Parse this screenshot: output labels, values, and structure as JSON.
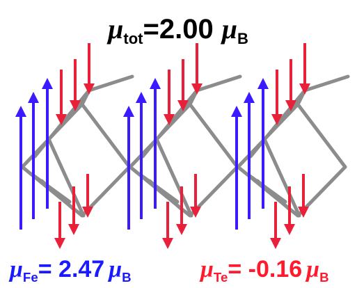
{
  "title": {
    "symbol": "μ",
    "subscript": "tot",
    "text": "=2.00",
    "unit_symbol": "μ",
    "unit_subscript": "B"
  },
  "labels": [
    {
      "symbol": "μ",
      "subscript": "Fe",
      "text": "= 2.47",
      "unit_symbol": "μ",
      "unit_subscript": "B",
      "color": "#1a1aff"
    },
    {
      "symbol": "μ",
      "subscript": "Te",
      "text": "= -0.16",
      "unit_symbol": "μ",
      "unit_subscript": "B",
      "color": "#ff1a2e"
    }
  ]
}
